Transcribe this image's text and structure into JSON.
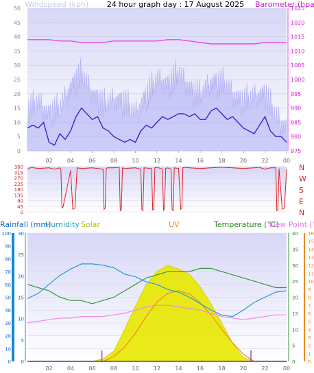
{
  "title": "24 hour graph day : 17 August 2025",
  "colors": {
    "wind_avg": "#2a2ad0",
    "wind_gust": "#b8b8f5",
    "barometer": "#ee44ee",
    "direction": "#e02020",
    "rainfall": "#1188dd",
    "humidity": "#2299dd",
    "solar": "#e8e800",
    "uv": "#ee8822",
    "temperature": "#339933",
    "dewpoint": "#ee88ee",
    "panel_bg_top": "#dcdcf8",
    "panel_bg_bottom": "#ffffff"
  },
  "chart_data": [
    {
      "type": "line",
      "x_ticks": [
        "02",
        "04",
        "06",
        "08",
        "10",
        "12",
        "14",
        "16",
        "18",
        "20",
        "22",
        "00"
      ],
      "left_axis": {
        "label": "Windspeed (kph)",
        "ticks": [
          0,
          5,
          10,
          15,
          20,
          25,
          30,
          35,
          40,
          45,
          50
        ],
        "range": [
          0,
          50
        ]
      },
      "right_axis": {
        "label": "Barometer (hpa)",
        "ticks": [
          975,
          980,
          985,
          990,
          995,
          1000,
          1005,
          1010,
          1015,
          1020,
          1025
        ],
        "range": [
          975,
          1025
        ]
      },
      "series": [
        {
          "key": "gust",
          "x": [
            0,
            1,
            2,
            3,
            4,
            5,
            6,
            7,
            8,
            9,
            10,
            11,
            12,
            13,
            14,
            15,
            16,
            17,
            18,
            19,
            20,
            21,
            22,
            23,
            24
          ],
          "values": [
            14,
            17,
            13,
            15,
            22,
            27,
            20,
            16,
            18,
            17,
            13,
            19,
            25,
            23,
            27,
            22,
            19,
            24,
            24,
            20,
            17,
            19,
            20,
            12,
            8
          ]
        },
        {
          "key": "average",
          "x": [
            0,
            0.5,
            1,
            1.5,
            2,
            2.5,
            3,
            3.5,
            4,
            4.5,
            5,
            5.5,
            6,
            6.5,
            7,
            7.5,
            8,
            8.5,
            9,
            9.5,
            10,
            10.5,
            11,
            11.5,
            12,
            12.5,
            13,
            13.5,
            14,
            14.5,
            15,
            15.5,
            16,
            16.5,
            17,
            17.5,
            18,
            18.5,
            19,
            19.5,
            20,
            20.5,
            21,
            21.5,
            22,
            22.5,
            23,
            23.5,
            24
          ],
          "values": [
            8,
            9,
            8,
            10,
            3,
            2,
            6,
            4,
            7,
            12,
            15,
            13,
            11,
            12,
            8,
            7,
            5,
            4,
            3,
            4,
            3,
            7,
            9,
            8,
            10,
            12,
            11,
            12,
            13,
            13,
            12,
            13,
            11,
            11,
            14,
            15,
            13,
            11,
            12,
            10,
            8,
            7,
            6,
            9,
            12,
            7,
            5,
            5,
            3
          ]
        },
        {
          "key": "barometer",
          "x": [
            0,
            1,
            2,
            3,
            4,
            5,
            6,
            7,
            8,
            9,
            10,
            11,
            12,
            13,
            14,
            15,
            16,
            17,
            18,
            19,
            20,
            21,
            22,
            23,
            24
          ],
          "values": [
            1014,
            1014,
            1014,
            1013.5,
            1013.5,
            1013,
            1013,
            1013,
            1013.5,
            1013.5,
            1013.5,
            1013.5,
            1013.5,
            1014,
            1014,
            1013.5,
            1013,
            1012.5,
            1012.5,
            1012.5,
            1012.5,
            1012.5,
            1013,
            1013,
            1013
          ]
        }
      ]
    },
    {
      "type": "line",
      "x_ticks": [
        "02",
        "04",
        "06",
        "08",
        "10",
        "12",
        "14",
        "16",
        "18",
        "20",
        "22",
        "00"
      ],
      "left_axis": {
        "ticks": [
          0,
          45,
          90,
          135,
          180,
          225,
          270,
          315,
          360
        ],
        "range": [
          0,
          360
        ]
      },
      "right_axis": {
        "labels": [
          "N",
          "W",
          "S",
          "E",
          "N"
        ]
      },
      "series": [
        {
          "key": "direction",
          "x": [
            0,
            0.4,
            0.6,
            1,
            2,
            2.5,
            3,
            3.1,
            3.2,
            3.3,
            4,
            4.2,
            4.4,
            4.6,
            5,
            6,
            7,
            7.1,
            7.2,
            7.3,
            7.4,
            8,
            8.5,
            8.6,
            8.7,
            8.8,
            9,
            10,
            10.5,
            10.6,
            10.7,
            10.8,
            11.5,
            11.6,
            11.7,
            11.8,
            12,
            12.5,
            12.6,
            12.7,
            12.8,
            13,
            13.3,
            13.4,
            13.5,
            13.6,
            14,
            14.2,
            14.3,
            14.4,
            14.5,
            15,
            16,
            17,
            18,
            19,
            20,
            21,
            21.5,
            21.6,
            22,
            22.5,
            23,
            23.1,
            23.2,
            23.3,
            23.6,
            23.8,
            24
          ],
          "values": [
            340,
            355,
            350,
            345,
            350,
            340,
            350,
            340,
            30,
            40,
            330,
            20,
            30,
            350,
            345,
            350,
            340,
            20,
            30,
            345,
            350,
            350,
            355,
            10,
            20,
            350,
            345,
            350,
            340,
            20,
            10,
            350,
            345,
            15,
            20,
            350,
            355,
            340,
            10,
            30,
            345,
            350,
            340,
            20,
            10,
            350,
            345,
            20,
            30,
            350,
            355,
            350,
            345,
            350,
            355,
            350,
            345,
            350,
            355,
            350,
            340,
            350,
            350,
            10,
            20,
            345,
            20,
            30,
            340
          ]
        }
      ]
    },
    {
      "type": "area",
      "x_ticks": [
        "02",
        "04",
        "06",
        "08",
        "10",
        "12",
        "14",
        "16",
        "18",
        "20",
        "22",
        "00"
      ],
      "legend": [
        "Rainfall (mm)",
        "Humidity",
        "Solar",
        "UV",
        "Temperature (°C)",
        "Dew Point (°C)"
      ],
      "axes": {
        "humidity": {
          "ticks": [
            0,
            10,
            20,
            30,
            40,
            50,
            60,
            70,
            80,
            90,
            100
          ],
          "range": [
            0,
            100
          ]
        },
        "rainfall": {
          "ticks": [
            0,
            5,
            10,
            15,
            20,
            25,
            30
          ],
          "range": [
            0,
            30
          ]
        },
        "temperature": {
          "ticks": [
            0,
            5,
            10,
            15,
            20,
            25,
            30,
            35,
            40
          ],
          "range": [
            0,
            40
          ]
        },
        "uv": {
          "ticks": [
            0,
            1,
            2,
            3,
            4,
            5,
            6,
            7,
            8,
            9,
            10,
            11,
            12,
            13,
            14,
            15,
            16
          ],
          "range": [
            0,
            16
          ]
        }
      },
      "series": [
        {
          "key": "humidity",
          "x": [
            0,
            1,
            2,
            3,
            4,
            5,
            6,
            7,
            8,
            9,
            10,
            11,
            12,
            13,
            14,
            15,
            16,
            17,
            18,
            19,
            20,
            21,
            22,
            23,
            24
          ],
          "values": [
            49,
            53,
            60,
            67,
            72,
            76,
            76,
            75,
            73,
            68,
            66,
            62,
            60,
            56,
            54,
            50,
            45,
            40,
            36,
            35,
            40,
            46,
            50,
            54,
            55
          ]
        },
        {
          "key": "temperature",
          "x": [
            0,
            1,
            2,
            3,
            4,
            5,
            6,
            7,
            8,
            9,
            10,
            11,
            12,
            13,
            14,
            15,
            16,
            17,
            18,
            19,
            20,
            21,
            22,
            23,
            24
          ],
          "values": [
            24,
            23,
            22,
            20,
            19,
            19,
            18,
            19,
            20,
            22,
            24,
            26,
            27,
            28,
            28,
            28,
            29,
            29,
            28,
            27,
            26,
            25,
            24,
            23,
            23
          ]
        },
        {
          "key": "dewpoint",
          "x": [
            0,
            1,
            2,
            3,
            4,
            5,
            6,
            7,
            8,
            9,
            10,
            11,
            12,
            13,
            14,
            15,
            16,
            17,
            18,
            19,
            20,
            21,
            22,
            23,
            24
          ],
          "values": [
            12,
            12.5,
            13,
            13.5,
            13.5,
            14,
            14,
            14,
            14.5,
            15,
            16,
            17,
            17.5,
            17.5,
            17,
            16.5,
            16,
            15,
            14,
            13.5,
            13,
            13.5,
            14,
            14.5,
            14.5
          ]
        },
        {
          "key": "solar",
          "x": [
            0,
            6,
            7,
            8,
            9,
            10,
            11,
            12,
            13,
            14,
            15,
            16,
            17,
            18,
            19,
            20,
            21,
            24
          ],
          "values": [
            0,
            0,
            2,
            8,
            25,
            43,
            60,
            70,
            75,
            72,
            68,
            58,
            45,
            30,
            14,
            3,
            0,
            0
          ]
        },
        {
          "key": "uv",
          "x": [
            0,
            7,
            8,
            9,
            10,
            11,
            12,
            13,
            14,
            15,
            16,
            17,
            18,
            19,
            20,
            21,
            24
          ],
          "values": [
            0,
            0,
            0.6,
            1.8,
            3.5,
            5.6,
            7.4,
            8.5,
            8.8,
            8.4,
            7.3,
            5.8,
            4,
            2.3,
            0.9,
            0,
            0
          ]
        },
        {
          "key": "rain_markers",
          "x": [
            6.9,
            20.7
          ],
          "values": [
            1,
            1
          ]
        }
      ]
    }
  ]
}
